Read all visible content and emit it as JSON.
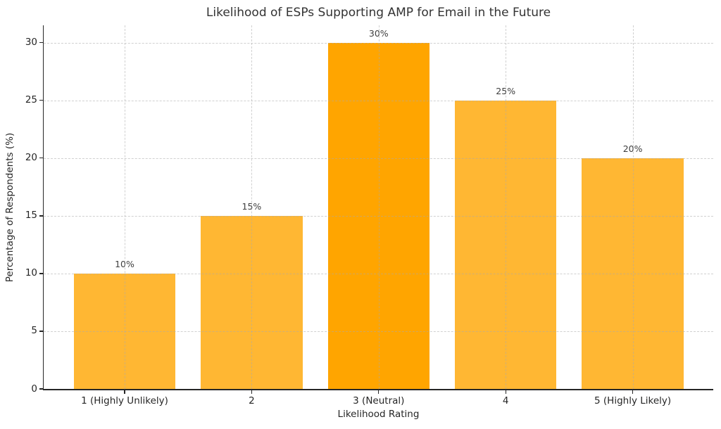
{
  "chart_data": {
    "type": "bar",
    "title": "Likelihood of ESPs Supporting AMP for Email in the Future",
    "xlabel": "Likelihood Rating",
    "ylabel": "Percentage of Respondents (%)",
    "categories": [
      "1 (Highly Unlikely)",
      "2",
      "3 (Neutral)",
      "4",
      "5 (Highly Likely)"
    ],
    "values": [
      10,
      15,
      30,
      25,
      20
    ],
    "data_labels": [
      "10%",
      "15%",
      "30%",
      "25%",
      "20%"
    ],
    "ylim": [
      0,
      31.5
    ],
    "yticks": [
      0,
      5,
      10,
      15,
      20,
      25,
      30
    ],
    "grid": "dashed gridlines on both axes, drawn over bars",
    "legend": "none",
    "bar_color": "#FFB733",
    "highlight_color": "#FFA500",
    "highlight_index": 2,
    "spines": "left and bottom only",
    "background_color": "#FFFFFF",
    "text_color": "#262626"
  }
}
